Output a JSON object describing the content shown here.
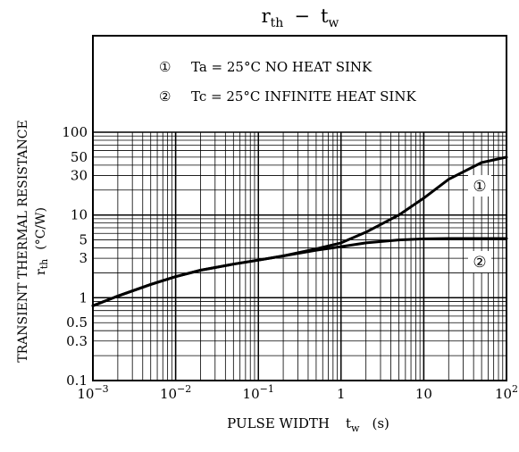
{
  "chart_data": {
    "type": "line",
    "title_main": "r",
    "title_sub": "th",
    "title_dash": "−",
    "title_main2": "t",
    "title_sub2": "w",
    "legend": [
      {
        "marker": "①",
        "text": "Ta = 25°C NO HEAT SINK"
      },
      {
        "marker": "②",
        "text": "Tc = 25°C INFINITE HEAT SINK"
      }
    ],
    "ylabel_line1": "TRANSIENT THERMAL RESISTANCE",
    "ylabel_line2_main": "r",
    "ylabel_line2_sub": "th",
    "ylabel_line2_unit": "(°C/W)",
    "xlabel_main": "PULSE WIDTH",
    "xlabel_sym": "t",
    "xlabel_sub": "w",
    "xlabel_unit": "(s)",
    "x_scale": "log",
    "y_scale": "log",
    "xlim": [
      0.001,
      100
    ],
    "ylim": [
      0.1,
      100
    ],
    "y_ticks": [
      {
        "value": 100,
        "label": "100"
      },
      {
        "value": 50,
        "label": "50"
      },
      {
        "value": 30,
        "label": "30"
      },
      {
        "value": 10,
        "label": "10"
      },
      {
        "value": 5,
        "label": "5"
      },
      {
        "value": 3,
        "label": "3"
      },
      {
        "value": 1,
        "label": "1"
      },
      {
        "value": 0.5,
        "label": "0.5"
      },
      {
        "value": 0.3,
        "label": "0.3"
      },
      {
        "value": 0.1,
        "label": "0.1"
      }
    ],
    "x_ticks": [
      {
        "value": 0.001,
        "base": "10",
        "exp": "−3"
      },
      {
        "value": 0.01,
        "base": "10",
        "exp": "−2"
      },
      {
        "value": 0.1,
        "base": "10",
        "exp": "−1"
      },
      {
        "value": 1,
        "base": "1",
        "exp": ""
      },
      {
        "value": 10,
        "base": "10",
        "exp": ""
      },
      {
        "value": 100,
        "base": "10",
        "exp": "2"
      }
    ],
    "grid": true,
    "series": [
      {
        "label": "①",
        "x": [
          0.001,
          0.002,
          0.005,
          0.01,
          0.02,
          0.05,
          0.1,
          0.2,
          0.5,
          1,
          2,
          5,
          10,
          20,
          50,
          100
        ],
        "y": [
          0.8,
          1.05,
          1.45,
          1.8,
          2.15,
          2.55,
          2.85,
          3.2,
          3.9,
          4.6,
          6.2,
          10,
          16,
          27,
          43,
          50
        ]
      },
      {
        "label": "②",
        "x": [
          0.001,
          0.002,
          0.005,
          0.01,
          0.02,
          0.05,
          0.1,
          0.2,
          0.5,
          1,
          2,
          5,
          10,
          20,
          50,
          100
        ],
        "y": [
          0.8,
          1.05,
          1.45,
          1.8,
          2.15,
          2.55,
          2.85,
          3.2,
          3.75,
          4.15,
          4.6,
          5.0,
          5.15,
          5.2,
          5.2,
          5.2
        ]
      }
    ]
  }
}
